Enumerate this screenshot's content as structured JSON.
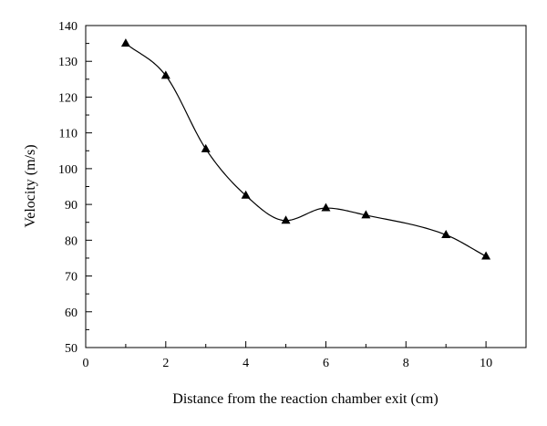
{
  "chart_data": {
    "type": "scatter",
    "title": "",
    "xlabel": "Distance from the reaction chamber exit (cm)",
    "ylabel": "Velocity (m/s)",
    "xlim": [
      0,
      11
    ],
    "ylim": [
      50,
      140
    ],
    "x_ticks": [
      0,
      2,
      4,
      6,
      8,
      10
    ],
    "y_ticks": [
      50,
      60,
      70,
      80,
      90,
      100,
      110,
      120,
      130,
      140
    ],
    "grid": false,
    "marker": "triangle",
    "series": [
      {
        "x": [
          1,
          2,
          3,
          4,
          5,
          6,
          7,
          9,
          10
        ],
        "y": [
          135,
          126,
          105.5,
          92.5,
          85.5,
          89,
          87,
          81.5,
          75.5
        ],
        "has_fit_curve": true
      }
    ],
    "colors": {
      "marker": "#000000",
      "curve": "#000000",
      "axes": "#000000"
    }
  }
}
